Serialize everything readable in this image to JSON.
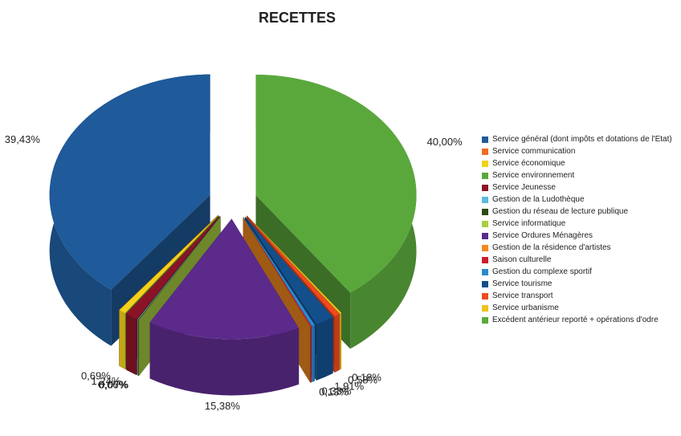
{
  "chart_data": {
    "type": "pie",
    "title": "RECETTES",
    "categories": [
      "Service général (dont impôts et dotations de l'Etat)",
      "Service communication",
      "Service économique",
      "Service environnement",
      "Service Jeunesse",
      "Gestion de la Ludothèque",
      "Gestion du réseau de lecture publique",
      "Service informatique",
      "Service Ordures Ménagères",
      "Gestion de la résidence d'artistes",
      "Saison culturelle",
      "Gestion du complexe sportif",
      "Service tourisme",
      "Service transport",
      "Service urbanisme",
      "Excédent antérieur reporté + opérations d'odre"
    ],
    "values": [
      39.43,
      0,
      0.69,
      0,
      1.24,
      0.06,
      0.07,
      0,
      15.38,
      0,
      0.13,
      0.33,
      1.91,
      0.58,
      0.18,
      40.0
    ],
    "value_labels": [
      "39,43%",
      null,
      "0,69%",
      null,
      "1,24%",
      "0,06%",
      "0,07%",
      null,
      "15,38%",
      null,
      "0,13%",
      "0,33%",
      "1,91%",
      "0,58%",
      "0,18%",
      "40,00%"
    ],
    "colors": [
      "#1f5a9a",
      "#f26b21",
      "#f2d21a",
      "#5aa83c",
      "#8a1426",
      "#5bbbe0",
      "#2d4a12",
      "#a8d040",
      "#5b2a8a",
      "#f58a1e",
      "#c8202a",
      "#2a8ad0",
      "#134f8a",
      "#f04a1e",
      "#f2c21a",
      "#5aa83c"
    ],
    "legend": "right"
  }
}
